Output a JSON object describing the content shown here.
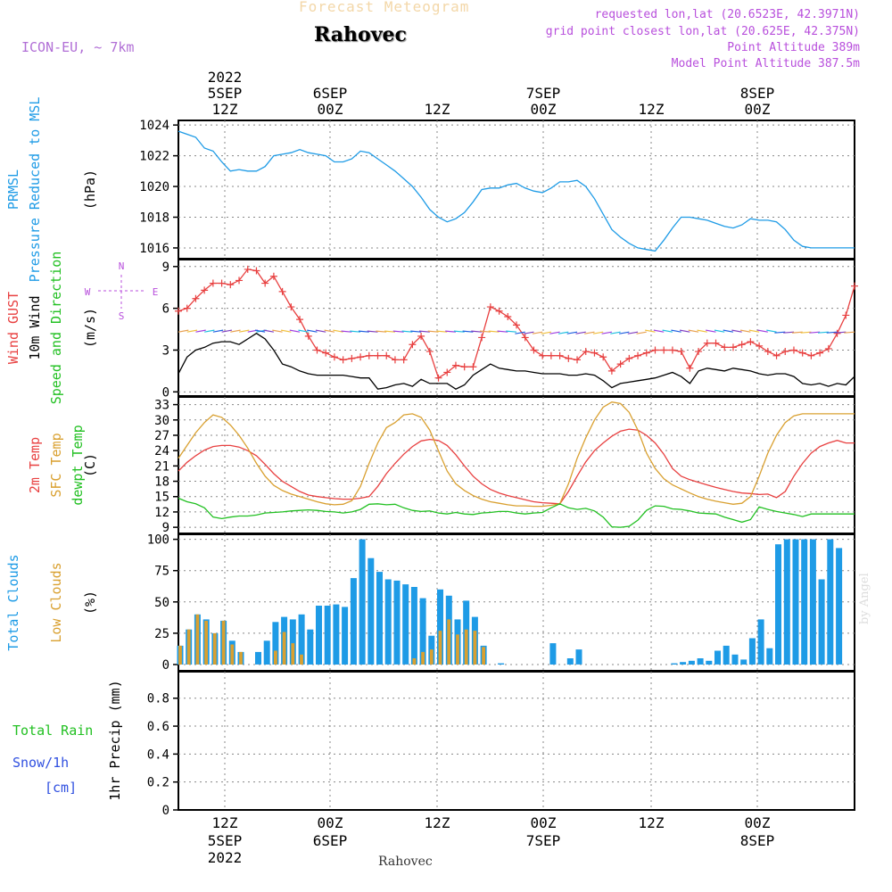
{
  "header": {
    "forecast_title": "Forecast Meteogram",
    "place": "Rahovec",
    "model": "ICON-EU, ~ 7km",
    "requested_point": "requested lon,lat (20.6523E, 42.3971N)",
    "grid_point": "grid point closest lon,lat (20.625E, 42.375N)",
    "point_altitude": "Point Altitude 389m",
    "model_altitude": "Model Point Altitude 387.5m"
  },
  "footer": {
    "place": "Rahovec",
    "watermark": "by Angel"
  },
  "colors": {
    "pressure": "#1e9be6",
    "gust": "#e84040",
    "wind": "#000000",
    "temp2m": "#e84040",
    "sfc_temp": "#d9a030",
    "dewpoint": "#22c022",
    "total_clouds": "#1e9be6",
    "low_clouds": "#d9a030",
    "rain": "#22c022",
    "snow": "#3050e0",
    "axis_text": "#000000",
    "header_purple": "#b84fdc"
  },
  "chart_data": [
    {
      "type": "line",
      "title": "",
      "ylabel_lines": [
        "PRMSL",
        "Pressure Reduced to MSL"
      ],
      "unit": "(hPa)",
      "yticks": [
        "1016",
        "1018",
        "1020",
        "1022",
        "1024"
      ],
      "ylim": [
        1015.3,
        1024.3
      ],
      "x": [
        0,
        1,
        2,
        3,
        4,
        5,
        6,
        7,
        8,
        9,
        10,
        11,
        12,
        13,
        14,
        15,
        16,
        17,
        18,
        19,
        20,
        21,
        22,
        23,
        24,
        25,
        26,
        27,
        28,
        29,
        30,
        31,
        32,
        33,
        34,
        35,
        36,
        37,
        38,
        39,
        40,
        41,
        42,
        43,
        44,
        45,
        46,
        47,
        48,
        49,
        50,
        51,
        52,
        53,
        54,
        55,
        56,
        57,
        58,
        59,
        60,
        61,
        62,
        63,
        64,
        65,
        66,
        67,
        68,
        69,
        70,
        71,
        72,
        73,
        74,
        75,
        76,
        77,
        78
      ],
      "series": [
        {
          "name": "PRMSL",
          "values": [
            1023.6,
            1023.4,
            1023.2,
            1022.5,
            1022.3,
            1021.6,
            1021.0,
            1021.1,
            1021.0,
            1021.0,
            1021.3,
            1022.0,
            1022.1,
            1022.2,
            1022.4,
            1022.2,
            1022.1,
            1022.0,
            1021.6,
            1021.6,
            1021.8,
            1022.3,
            1022.2,
            1021.8,
            1021.4,
            1021.0,
            1020.5,
            1020.0,
            1019.3,
            1018.5,
            1018.0,
            1017.7,
            1017.9,
            1018.3,
            1019.0,
            1019.8,
            1019.9,
            1019.9,
            1020.1,
            1020.2,
            1019.9,
            1019.7,
            1019.6,
            1019.9,
            1020.3,
            1020.3,
            1020.4,
            1020.0,
            1019.2,
            1018.2,
            1017.2,
            1016.7,
            1016.3,
            1016.0,
            1015.9,
            1015.8,
            1016.5,
            1017.3,
            1018.0,
            1018.0,
            1017.9,
            1017.8,
            1017.6,
            1017.4,
            1017.3,
            1017.5,
            1017.9,
            1017.8,
            1017.8,
            1017.7,
            1017.2,
            1016.5,
            1016.1,
            1016.0,
            1016.0,
            1016.0,
            1016.0,
            1016.0,
            1016.0
          ]
        }
      ]
    },
    {
      "type": "line",
      "title": "",
      "ylabel_lines": [
        "Wind GUST",
        "10m Wind",
        "Speed and Direction"
      ],
      "unit": "(m/s)",
      "compass": {
        "n": "N",
        "s": "S",
        "e": "E",
        "w": "W"
      },
      "yticks": [
        "0",
        "3",
        "6",
        "9"
      ],
      "ylim": [
        -0.3,
        9.5
      ],
      "x": [
        0,
        1,
        2,
        3,
        4,
        5,
        6,
        7,
        8,
        9,
        10,
        11,
        12,
        13,
        14,
        15,
        16,
        17,
        18,
        19,
        20,
        21,
        22,
        23,
        24,
        25,
        26,
        27,
        28,
        29,
        30,
        31,
        32,
        33,
        34,
        35,
        36,
        37,
        38,
        39,
        40,
        41,
        42,
        43,
        44,
        45,
        46,
        47,
        48,
        49,
        50,
        51,
        52,
        53,
        54,
        55,
        56,
        57,
        58,
        59,
        60,
        61,
        62,
        63,
        64,
        65,
        66,
        67,
        68,
        69,
        70,
        71,
        72,
        73,
        74,
        75,
        76,
        77,
        78
      ],
      "series": [
        {
          "name": "Wind GUST",
          "values": [
            5.8,
            6.0,
            6.7,
            7.3,
            7.8,
            7.8,
            7.7,
            8.0,
            8.8,
            8.7,
            7.8,
            8.3,
            7.2,
            6.1,
            5.2,
            4.0,
            3.0,
            2.8,
            2.5,
            2.3,
            2.4,
            2.5,
            2.6,
            2.6,
            2.6,
            2.3,
            2.3,
            3.4,
            4.0,
            2.9,
            1.0,
            1.4,
            1.9,
            1.8,
            1.8,
            3.9,
            6.1,
            5.8,
            5.4,
            4.8,
            3.9,
            3.0,
            2.6,
            2.6,
            2.6,
            2.4,
            2.3,
            2.9,
            2.8,
            2.5,
            1.5,
            2.0,
            2.4,
            2.6,
            2.8,
            3.0,
            3.0,
            3.0,
            2.9,
            1.7,
            2.9,
            3.5,
            3.5,
            3.2,
            3.2,
            3.4,
            3.6,
            3.3,
            2.9,
            2.6,
            2.9,
            3.0,
            2.8,
            2.6,
            2.8,
            3.1,
            4.2,
            5.5,
            7.6
          ]
        },
        {
          "name": "10m Wind",
          "values": [
            1.3,
            2.5,
            3.0,
            3.2,
            3.5,
            3.6,
            3.6,
            3.4,
            3.8,
            4.2,
            3.8,
            3.0,
            2.0,
            1.8,
            1.5,
            1.3,
            1.2,
            1.2,
            1.2,
            1.2,
            1.1,
            1.0,
            1.0,
            0.2,
            0.3,
            0.5,
            0.6,
            0.4,
            0.9,
            0.6,
            0.6,
            0.6,
            0.2,
            0.5,
            1.2,
            1.6,
            2.0,
            1.7,
            1.6,
            1.5,
            1.5,
            1.4,
            1.3,
            1.3,
            1.3,
            1.2,
            1.2,
            1.3,
            1.2,
            0.8,
            0.3,
            0.6,
            0.7,
            0.8,
            0.9,
            1.0,
            1.2,
            1.4,
            1.1,
            0.6,
            1.5,
            1.7,
            1.6,
            1.5,
            1.7,
            1.6,
            1.5,
            1.3,
            1.2,
            1.3,
            1.3,
            1.1,
            0.6,
            0.5,
            0.6,
            0.4,
            0.6,
            0.5,
            1.1
          ]
        }
      ]
    },
    {
      "type": "line",
      "title": "",
      "ylabel_lines": [
        "2m Temp",
        "SFC Temp",
        "dewpt Temp"
      ],
      "unit": "(C)",
      "yticks": [
        "9",
        "12",
        "15",
        "18",
        "21",
        "24",
        "27",
        "30",
        "33"
      ],
      "ylim": [
        7.8,
        34.5
      ],
      "x": [
        0,
        1,
        2,
        3,
        4,
        5,
        6,
        7,
        8,
        9,
        10,
        11,
        12,
        13,
        14,
        15,
        16,
        17,
        18,
        19,
        20,
        21,
        22,
        23,
        24,
        25,
        26,
        27,
        28,
        29,
        30,
        31,
        32,
        33,
        34,
        35,
        36,
        37,
        38,
        39,
        40,
        41,
        42,
        43,
        44,
        45,
        46,
        47,
        48,
        49,
        50,
        51,
        52,
        53,
        54,
        55,
        56,
        57,
        58,
        59,
        60,
        61,
        62,
        63,
        64,
        65,
        66,
        67,
        68,
        69,
        70,
        71,
        72,
        73,
        74,
        75,
        76,
        77,
        78
      ],
      "series": [
        {
          "name": "2m Temp",
          "values": [
            20.0,
            21.7,
            23.0,
            24.1,
            24.8,
            25.0,
            25.0,
            24.7,
            24.0,
            23.0,
            21.3,
            19.5,
            18.0,
            17.0,
            16.0,
            15.3,
            15.0,
            14.8,
            14.6,
            14.5,
            14.5,
            14.7,
            15.0,
            17.0,
            19.5,
            21.5,
            23.3,
            24.8,
            25.9,
            26.2,
            26.0,
            25.0,
            23.2,
            21.0,
            19.0,
            17.5,
            16.4,
            15.7,
            15.2,
            14.8,
            14.4,
            14.0,
            13.8,
            13.7,
            13.6,
            16.0,
            19.0,
            21.8,
            24.0,
            25.5,
            26.8,
            27.8,
            28.2,
            28.0,
            27.0,
            25.5,
            23.3,
            20.5,
            19.0,
            18.3,
            17.8,
            17.3,
            16.8,
            16.4,
            16.0,
            15.7,
            15.6,
            15.4,
            15.5,
            14.8,
            16.0,
            19.0,
            21.5,
            23.5,
            24.8,
            25.5,
            26.0,
            25.5,
            25.5
          ]
        },
        {
          "name": "SFC Temp",
          "values": [
            22.5,
            25.0,
            27.5,
            29.5,
            31.0,
            30.5,
            29.0,
            27.0,
            24.5,
            21.5,
            19.0,
            17.2,
            16.2,
            15.5,
            15.0,
            14.5,
            14.0,
            13.6,
            13.4,
            13.5,
            14.2,
            17.0,
            21.5,
            25.5,
            28.5,
            29.5,
            31.0,
            31.2,
            30.5,
            28.0,
            24.0,
            20.0,
            17.5,
            16.2,
            15.2,
            14.5,
            14.0,
            13.7,
            13.4,
            13.2,
            13.2,
            13.1,
            13.1,
            13.3,
            13.6,
            17.5,
            22.5,
            26.5,
            30.0,
            32.5,
            33.5,
            33.2,
            31.5,
            28.0,
            23.5,
            20.5,
            18.5,
            17.3,
            16.5,
            15.7,
            15.0,
            14.5,
            14.1,
            13.8,
            13.5,
            13.7,
            15.0,
            19.0,
            23.5,
            27.0,
            29.5,
            30.8,
            31.2,
            31.2,
            31.2,
            31.2,
            31.2,
            31.2,
            31.2
          ]
        },
        {
          "name": "dewpt Temp",
          "values": [
            14.7,
            14.0,
            13.6,
            12.8,
            11.0,
            10.7,
            11.0,
            11.2,
            11.2,
            11.4,
            11.8,
            11.9,
            12.0,
            12.2,
            12.3,
            12.4,
            12.3,
            12.1,
            12.0,
            11.8,
            12.0,
            12.5,
            13.5,
            13.6,
            13.4,
            13.5,
            12.8,
            12.3,
            12.1,
            12.2,
            11.8,
            11.6,
            11.9,
            11.6,
            11.5,
            11.8,
            11.9,
            12.1,
            12.1,
            11.8,
            11.6,
            11.8,
            11.9,
            12.8,
            13.6,
            12.8,
            12.5,
            12.7,
            12.2,
            11.0,
            9.1,
            9.0,
            9.2,
            10.4,
            12.3,
            13.2,
            13.1,
            12.6,
            12.5,
            12.2,
            11.8,
            11.7,
            11.6,
            11.0,
            10.5,
            10.0,
            10.5,
            13.0,
            12.5,
            12.1,
            11.8,
            11.5,
            11.1,
            11.6,
            11.6,
            11.6,
            11.6,
            11.6,
            11.6
          ]
        }
      ]
    },
    {
      "type": "bar",
      "title": "",
      "ylabel_lines": [
        "Total Clouds",
        "Low Clouds"
      ],
      "unit": "(%)",
      "yticks": [
        "0",
        "25",
        "50",
        "75",
        "100"
      ],
      "ylim": [
        -5,
        104
      ],
      "x": [
        0,
        1,
        2,
        3,
        4,
        5,
        6,
        7,
        8,
        9,
        10,
        11,
        12,
        13,
        14,
        15,
        16,
        17,
        18,
        19,
        20,
        21,
        22,
        23,
        24,
        25,
        26,
        27,
        28,
        29,
        30,
        31,
        32,
        33,
        34,
        35,
        36,
        37,
        38,
        39,
        40,
        41,
        42,
        43,
        44,
        45,
        46,
        47,
        48,
        49,
        50,
        51,
        52,
        53,
        54,
        55,
        56,
        57,
        58,
        59,
        60,
        61,
        62,
        63,
        64,
        65,
        66,
        67,
        68,
        69,
        70,
        71,
        72,
        73,
        74,
        75,
        76,
        77,
        78
      ],
      "series": [
        {
          "name": "Total Clouds",
          "values": [
            15,
            28,
            40,
            36,
            25,
            35,
            19,
            10,
            0,
            10,
            19,
            34,
            38,
            36,
            40,
            28,
            47,
            47,
            48,
            46,
            69,
            100,
            85,
            74,
            68,
            67,
            64,
            62,
            53,
            23,
            60,
            55,
            36,
            51,
            38,
            15,
            0,
            1,
            0,
            0,
            0,
            0,
            0,
            17,
            0,
            5,
            12,
            0,
            0,
            0,
            0,
            0,
            0,
            0,
            0,
            0,
            0,
            1,
            2,
            3,
            5,
            3,
            11,
            15,
            8,
            4,
            21,
            36,
            13,
            96,
            100,
            100,
            100,
            100,
            68,
            100,
            93,
            0,
            0
          ]
        },
        {
          "name": "Low Clouds",
          "values": [
            15,
            28,
            40,
            35,
            25,
            35,
            16,
            10,
            0,
            0,
            0,
            11,
            26,
            17,
            8,
            0,
            0,
            0,
            0,
            0,
            0,
            0,
            0,
            0,
            0,
            0,
            0,
            5,
            10,
            12,
            27,
            36,
            24,
            28,
            27,
            14,
            0,
            0,
            0,
            0,
            0,
            0,
            0,
            0,
            0,
            0,
            0,
            0,
            0,
            0,
            0,
            0,
            0,
            0,
            0,
            0,
            0,
            0,
            0,
            0,
            0,
            0,
            0,
            0,
            0,
            0,
            0,
            0,
            0,
            0,
            0,
            0,
            0,
            0,
            0,
            0,
            0,
            0,
            0
          ]
        }
      ]
    },
    {
      "type": "bar",
      "title": "",
      "ylabel_lines": [
        "Total  Rain",
        "Snow/1h",
        "[cm]"
      ],
      "unit": "1hr Precip (mm)",
      "yticks": [
        "0",
        "0.2",
        "0.4",
        "0.6",
        "0.8"
      ],
      "ylim": [
        0,
        0.99
      ],
      "x": [],
      "series": [
        {
          "name": "Total  Rain",
          "values": []
        },
        {
          "name": "Snow/1h",
          "values": []
        }
      ]
    }
  ],
  "time_axis": {
    "labels": [
      {
        "hour": "12Z",
        "day": "5SEP",
        "year": "2022"
      },
      {
        "hour": "00Z",
        "day": "6SEP",
        "year": ""
      },
      {
        "hour": "12Z",
        "day": "",
        "year": ""
      },
      {
        "hour": "00Z",
        "day": "7SEP",
        "year": ""
      },
      {
        "hour": "12Z",
        "day": "",
        "year": ""
      },
      {
        "hour": "00Z",
        "day": "8SEP",
        "year": ""
      }
    ]
  }
}
